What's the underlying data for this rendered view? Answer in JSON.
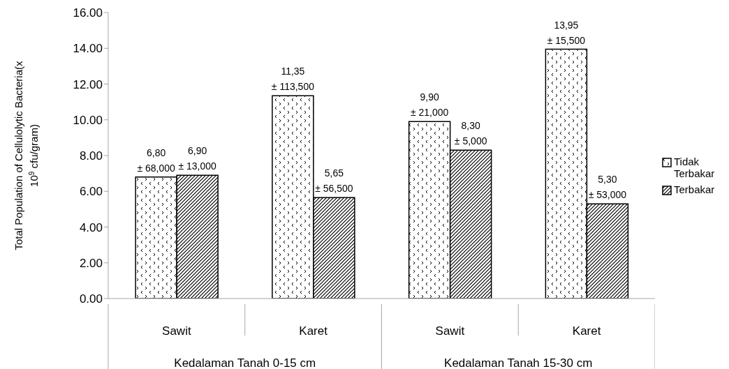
{
  "chart_data": {
    "type": "bar",
    "ylabel": "Total Population of Cellulolytic Bacteria(x 10$^{9}$ cfu/gram)",
    "categories": [
      "Sawit",
      "Karet",
      "Sawit",
      "Karet"
    ],
    "annotations": [
      "Kedalaman Tanah 0-15 cm",
      "Kedalaman Tanah 15-30 cm"
    ],
    "series": [
      {
        "name": "Tidak Terbakar",
        "color": "#000000",
        "values": [
          6.8,
          11.35,
          9.9,
          13.95
        ],
        "value_labels": [
          "6,80\n± 68,000",
          "11,35\n± 113,500",
          "9,90\n± 21,000",
          "13,95\n± 15,500"
        ]
      },
      {
        "name": "Terbakar",
        "color": "#000000",
        "values": [
          6.9,
          5.65,
          8.3,
          5.3
        ],
        "value_labels": [
          "6,90\n± 13,000",
          "5,65\n± 56,500",
          "8,30\n± 5,000",
          "5,30\n± 53,000"
        ]
      }
    ],
    "ylim": [
      0,
      16
    ],
    "yticks": [
      {
        "value": 0,
        "label": "0.00"
      },
      {
        "value": 2,
        "label": "2.00"
      },
      {
        "value": 4,
        "label": "4.00"
      },
      {
        "value": 6,
        "label": "6.00"
      },
      {
        "value": 8,
        "label": "8.00"
      },
      {
        "value": 10,
        "label": "10.00"
      },
      {
        "value": 12,
        "label": "12.00"
      },
      {
        "value": 14,
        "label": "14.00"
      },
      {
        "value": 16,
        "label": "16.00"
      }
    ],
    "grid": false,
    "legend": "right"
  }
}
